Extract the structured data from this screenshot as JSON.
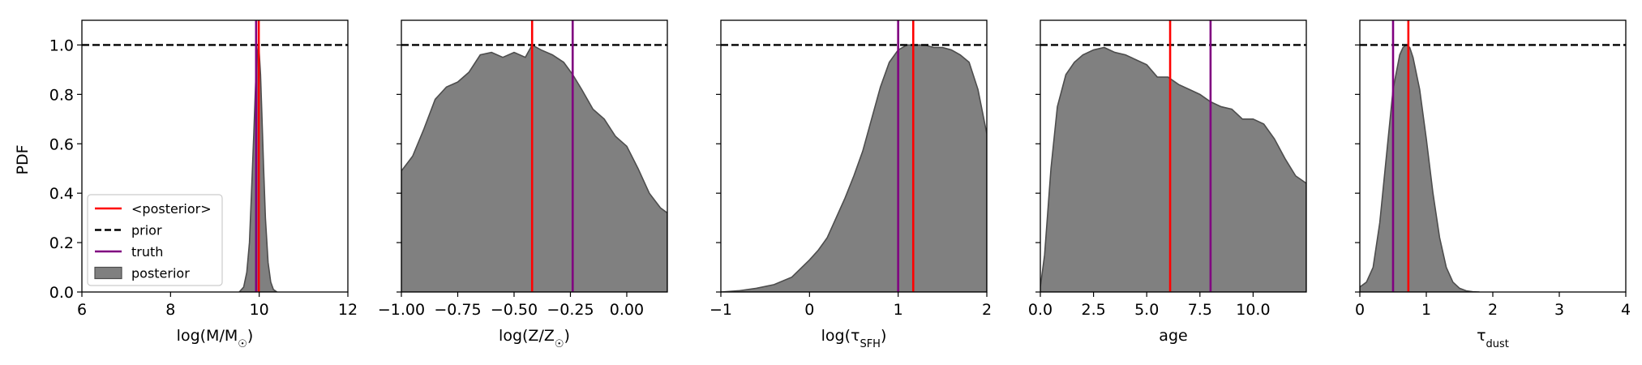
{
  "ylabel": "PDF",
  "legend": {
    "placement": "lower-left of first panel",
    "entries": [
      {
        "label": "<posterior>",
        "kind": "line",
        "color": "#ff0000",
        "dash": false
      },
      {
        "label": "prior",
        "kind": "line",
        "color": "#000000",
        "dash": true
      },
      {
        "label": "truth",
        "kind": "line",
        "color": "#800080",
        "dash": false
      },
      {
        "label": "posterior",
        "kind": "patch",
        "color": "#808080"
      }
    ]
  },
  "colors": {
    "posterior_fill": "#808080",
    "posterior_edge": "#4d4d4d",
    "mean_line": "#ff0000",
    "truth_line": "#800080",
    "prior_line": "#000000"
  },
  "chart_data": [
    {
      "type": "area",
      "xlabel": "log(M/M☉)",
      "xlim": [
        6,
        12
      ],
      "ylim": [
        0,
        1.1
      ],
      "xticks": [
        6,
        8,
        10,
        12
      ],
      "xtick_labels": [
        "6",
        "8",
        "10",
        "12"
      ],
      "yticks": [
        0.0,
        0.2,
        0.4,
        0.6,
        0.8,
        1.0
      ],
      "ytick_labels": [
        "0.0",
        "0.2",
        "0.4",
        "0.6",
        "0.8",
        "1.0"
      ],
      "show_yticklabels": true,
      "prior": 1.0,
      "posterior_mean": 9.99,
      "truth": 9.93,
      "posterior": {
        "x": [
          9.55,
          9.65,
          9.72,
          9.78,
          9.83,
          9.88,
          9.92,
          9.96,
          9.98,
          10.0,
          10.03,
          10.06,
          10.1,
          10.14,
          10.2,
          10.26,
          10.32,
          10.4
        ],
        "y": [
          0.0,
          0.02,
          0.08,
          0.2,
          0.42,
          0.65,
          0.85,
          0.97,
          1.0,
          0.97,
          0.88,
          0.72,
          0.5,
          0.3,
          0.12,
          0.04,
          0.01,
          0.0
        ]
      }
    },
    {
      "type": "area",
      "xlabel": "log(Z/Z☉)",
      "xlim": [
        -1.0,
        0.18
      ],
      "ylim": [
        0,
        1.1
      ],
      "xticks": [
        -1.0,
        -0.75,
        -0.5,
        -0.25,
        0.0
      ],
      "xtick_labels": [
        "−1.00",
        "−0.75",
        "−0.50",
        "−0.25",
        "0.00"
      ],
      "yticks": [
        0.0,
        0.2,
        0.4,
        0.6,
        0.8,
        1.0
      ],
      "ytick_labels": [],
      "show_yticklabels": false,
      "prior": 1.0,
      "posterior_mean": -0.42,
      "truth": -0.24,
      "posterior": {
        "x": [
          -1.0,
          -0.95,
          -0.9,
          -0.85,
          -0.8,
          -0.75,
          -0.7,
          -0.65,
          -0.6,
          -0.55,
          -0.5,
          -0.45,
          -0.42,
          -0.38,
          -0.33,
          -0.28,
          -0.24,
          -0.2,
          -0.15,
          -0.1,
          -0.05,
          0.0,
          0.05,
          0.1,
          0.15,
          0.18
        ],
        "y": [
          0.49,
          0.55,
          0.66,
          0.78,
          0.83,
          0.85,
          0.89,
          0.96,
          0.97,
          0.95,
          0.97,
          0.95,
          1.0,
          0.98,
          0.96,
          0.93,
          0.88,
          0.82,
          0.74,
          0.7,
          0.63,
          0.59,
          0.5,
          0.4,
          0.34,
          0.32
        ]
      }
    },
    {
      "type": "area",
      "xlabel": "log(τSFH)",
      "xlim": [
        -1,
        2
      ],
      "ylim": [
        0,
        1.1
      ],
      "xticks": [
        -1,
        0,
        1,
        2
      ],
      "xtick_labels": [
        "−1",
        "0",
        "1",
        "2"
      ],
      "yticks": [
        0.0,
        0.2,
        0.4,
        0.6,
        0.8,
        1.0
      ],
      "ytick_labels": [],
      "show_yticklabels": false,
      "prior": 1.0,
      "posterior_mean": 1.17,
      "truth": 1.0,
      "posterior": {
        "x": [
          -1.0,
          -0.8,
          -0.6,
          -0.4,
          -0.2,
          0.0,
          0.1,
          0.2,
          0.3,
          0.4,
          0.5,
          0.6,
          0.7,
          0.8,
          0.9,
          1.0,
          1.1,
          1.2,
          1.3,
          1.4,
          1.5,
          1.6,
          1.7,
          1.8,
          1.9,
          2.0
        ],
        "y": [
          0.0,
          0.005,
          0.015,
          0.03,
          0.06,
          0.13,
          0.17,
          0.22,
          0.3,
          0.38,
          0.47,
          0.57,
          0.7,
          0.83,
          0.93,
          0.98,
          1.0,
          1.0,
          1.0,
          0.99,
          0.99,
          0.98,
          0.96,
          0.93,
          0.82,
          0.64
        ]
      }
    },
    {
      "type": "area",
      "xlabel": "age",
      "xlim": [
        0,
        12.5
      ],
      "ylim": [
        0,
        1.1
      ],
      "xticks": [
        0.0,
        2.5,
        5.0,
        7.5,
        10.0
      ],
      "xtick_labels": [
        "0.0",
        "2.5",
        "5.0",
        "7.5",
        "10.0"
      ],
      "yticks": [
        0.0,
        0.2,
        0.4,
        0.6,
        0.8,
        1.0
      ],
      "ytick_labels": [],
      "show_yticklabels": false,
      "prior": 1.0,
      "posterior_mean": 6.1,
      "truth": 8.0,
      "posterior": {
        "x": [
          0.0,
          0.2,
          0.5,
          0.8,
          1.2,
          1.6,
          2.0,
          2.5,
          3.0,
          3.5,
          4.0,
          4.5,
          5.0,
          5.5,
          6.0,
          6.5,
          7.0,
          7.5,
          8.0,
          8.5,
          9.0,
          9.5,
          10.0,
          10.5,
          11.0,
          11.5,
          12.0,
          12.5
        ],
        "y": [
          0.02,
          0.15,
          0.5,
          0.75,
          0.88,
          0.93,
          0.96,
          0.98,
          0.99,
          0.97,
          0.96,
          0.94,
          0.92,
          0.87,
          0.87,
          0.84,
          0.82,
          0.8,
          0.77,
          0.75,
          0.74,
          0.7,
          0.7,
          0.68,
          0.62,
          0.54,
          0.47,
          0.44
        ]
      }
    },
    {
      "type": "area",
      "xlabel": "τdust",
      "xlim": [
        0,
        4
      ],
      "ylim": [
        0,
        1.1
      ],
      "xticks": [
        0,
        1,
        2,
        3,
        4
      ],
      "xtick_labels": [
        "0",
        "1",
        "2",
        "3",
        "4"
      ],
      "yticks": [
        0.0,
        0.2,
        0.4,
        0.6,
        0.8,
        1.0
      ],
      "ytick_labels": [],
      "show_yticklabels": false,
      "prior": 1.0,
      "posterior_mean": 0.73,
      "truth": 0.5,
      "posterior": {
        "x": [
          0.0,
          0.1,
          0.2,
          0.3,
          0.4,
          0.5,
          0.6,
          0.65,
          0.7,
          0.75,
          0.8,
          0.9,
          1.0,
          1.1,
          1.2,
          1.3,
          1.4,
          1.5,
          1.6,
          1.7,
          1.8
        ],
        "y": [
          0.02,
          0.04,
          0.1,
          0.28,
          0.55,
          0.82,
          0.96,
          0.99,
          1.0,
          0.99,
          0.95,
          0.82,
          0.62,
          0.4,
          0.22,
          0.1,
          0.04,
          0.015,
          0.005,
          0.001,
          0.0
        ]
      }
    }
  ]
}
